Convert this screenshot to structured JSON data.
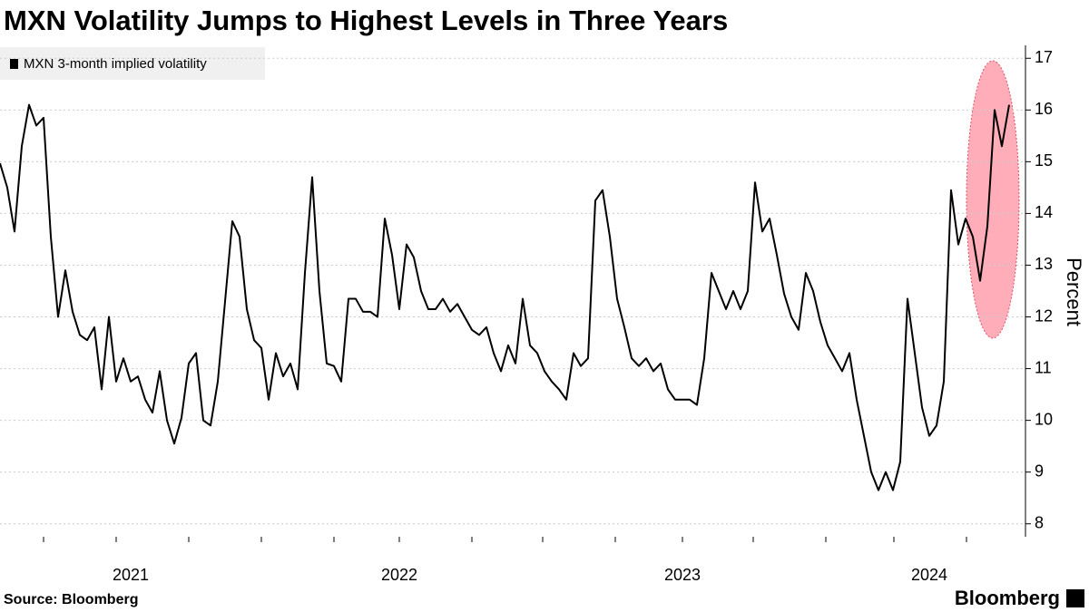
{
  "chart_data": {
    "type": "line",
    "title": "MXN Volatility Jumps to Highest Levels in Three Years",
    "y_label": "Percent",
    "source": "Source: Bloomberg",
    "branding": "Bloomberg",
    "legend": "top-left",
    "grid": true,
    "ylim": [
      7.75,
      17.25
    ],
    "yticks": [
      8,
      9,
      10,
      11,
      12,
      13,
      14,
      15,
      16,
      17
    ],
    "categories": [
      null,
      null,
      null,
      null,
      null,
      null,
      null,
      null,
      null,
      null,
      null,
      null,
      null,
      null,
      null,
      null,
      null,
      null,
      "2021",
      null,
      null,
      null,
      null,
      null,
      null,
      null,
      null,
      null,
      null,
      null,
      null,
      null,
      null,
      null,
      null,
      null,
      null,
      null,
      null,
      null,
      null,
      null,
      null,
      null,
      null,
      null,
      null,
      null,
      null,
      null,
      null,
      null,
      null,
      null,
      null,
      "2022",
      null,
      null,
      null,
      null,
      null,
      null,
      null,
      null,
      null,
      null,
      null,
      null,
      null,
      null,
      null,
      null,
      null,
      null,
      null,
      null,
      null,
      null,
      null,
      null,
      null,
      null,
      null,
      null,
      null,
      null,
      null,
      null,
      null,
      null,
      null,
      null,
      null,
      null,
      "2023",
      null,
      null,
      null,
      null,
      null,
      null,
      null,
      null,
      null,
      null,
      null,
      null,
      null,
      null,
      null,
      null,
      null,
      null,
      null,
      null,
      null,
      null,
      null,
      null,
      null,
      null,
      null,
      null,
      null,
      null,
      null,
      null,
      null,
      "2024",
      null,
      null,
      null,
      null,
      null,
      null,
      null,
      null,
      null,
      null,
      null
    ],
    "series": [
      {
        "name": "MXN 3-month implied volatility",
        "color": "#000000",
        "values": [
          14.97,
          14.5,
          13.65,
          15.3,
          16.1,
          15.7,
          15.85,
          13.55,
          12.0,
          12.9,
          12.1,
          11.65,
          11.55,
          11.8,
          10.6,
          12.0,
          10.75,
          11.2,
          10.75,
          10.85,
          10.4,
          10.15,
          10.95,
          10.0,
          9.55,
          10.05,
          11.1,
          11.3,
          10.0,
          9.9,
          10.75,
          12.3,
          13.85,
          13.55,
          12.15,
          11.55,
          11.4,
          10.4,
          11.3,
          10.85,
          11.1,
          10.6,
          12.85,
          14.7,
          12.5,
          11.1,
          11.05,
          10.75,
          12.35,
          12.35,
          12.1,
          12.1,
          12.0,
          13.9,
          13.2,
          12.15,
          13.4,
          13.15,
          12.5,
          12.15,
          12.15,
          12.35,
          12.1,
          12.25,
          12.0,
          11.75,
          11.65,
          11.8,
          11.3,
          10.95,
          11.45,
          11.1,
          12.35,
          11.45,
          11.3,
          10.95,
          10.75,
          10.6,
          10.4,
          11.3,
          11.05,
          11.2,
          14.25,
          14.45,
          13.55,
          12.35,
          11.8,
          11.2,
          11.05,
          11.2,
          10.95,
          11.1,
          10.6,
          10.4,
          10.4,
          10.4,
          10.3,
          11.2,
          12.85,
          12.5,
          12.15,
          12.5,
          12.15,
          12.5,
          14.6,
          13.65,
          13.9,
          13.2,
          12.45,
          12.0,
          11.75,
          12.85,
          12.5,
          11.9,
          11.45,
          11.2,
          10.95,
          11.3,
          10.4,
          9.7,
          9.0,
          8.65,
          9.0,
          8.65,
          9.2,
          12.35,
          11.3,
          10.25,
          9.7,
          9.9,
          10.75,
          14.45,
          13.4,
          13.9,
          13.55,
          12.7,
          13.75,
          16.0,
          15.3,
          16.1
        ]
      }
    ]
  }
}
